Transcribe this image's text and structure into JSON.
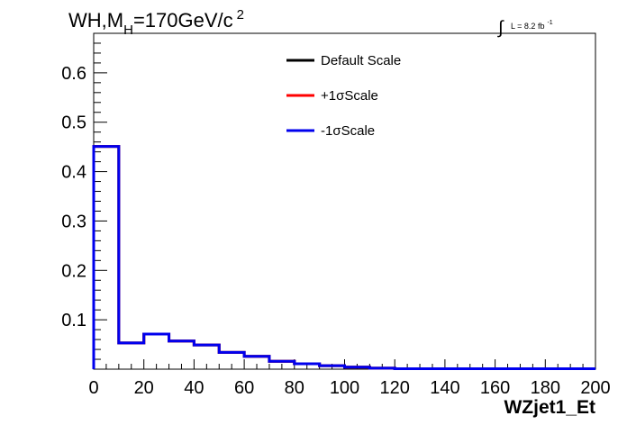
{
  "chart_data": {
    "type": "line",
    "step": true,
    "title_parts": {
      "main": "WH,M",
      "sub": "H",
      "rest": "=170GeV/c",
      "sup": "2"
    },
    "lumi_parts": {
      "integral": "∫",
      "text": "L = 8.2 fb",
      "sup": "-1"
    },
    "xlabel": "WZjet1_Et",
    "ylabel": "",
    "xlim": [
      0,
      200
    ],
    "ylim": [
      0,
      0.68
    ],
    "x_ticks": [
      "0",
      "20",
      "40",
      "60",
      "80",
      "100",
      "120",
      "140",
      "160",
      "180",
      "200"
    ],
    "y_ticks": [
      "0.1",
      "0.2",
      "0.3",
      "0.4",
      "0.5",
      "0.6"
    ],
    "legend_position": "top-center",
    "bin_edges": [
      0,
      10,
      20,
      30,
      40,
      50,
      60,
      70,
      80,
      90,
      100,
      110,
      120,
      130,
      140,
      150,
      160,
      170,
      180,
      190,
      200
    ],
    "series": [
      {
        "name": "Default Scale",
        "color": "#000000",
        "values": [
          0.451,
          0.053,
          0.071,
          0.057,
          0.049,
          0.034,
          0.026,
          0.016,
          0.011,
          0.007,
          0.004,
          0.002,
          0.001,
          0.001,
          0.001,
          0.001,
          0.001,
          0.001,
          0.001,
          0.001
        ]
      },
      {
        "name": "+1σScale",
        "color": "#ff0000",
        "values": [
          0.451,
          0.053,
          0.071,
          0.057,
          0.049,
          0.034,
          0.026,
          0.016,
          0.011,
          0.007,
          0.004,
          0.002,
          0.001,
          0.001,
          0.001,
          0.001,
          0.001,
          0.001,
          0.001,
          0.001
        ]
      },
      {
        "name": "-1σScale",
        "color": "#0000ee",
        "values": [
          0.451,
          0.053,
          0.071,
          0.057,
          0.049,
          0.034,
          0.026,
          0.016,
          0.011,
          0.007,
          0.004,
          0.002,
          0.001,
          0.001,
          0.001,
          0.001,
          0.001,
          0.001,
          0.001,
          0.001
        ]
      }
    ]
  }
}
